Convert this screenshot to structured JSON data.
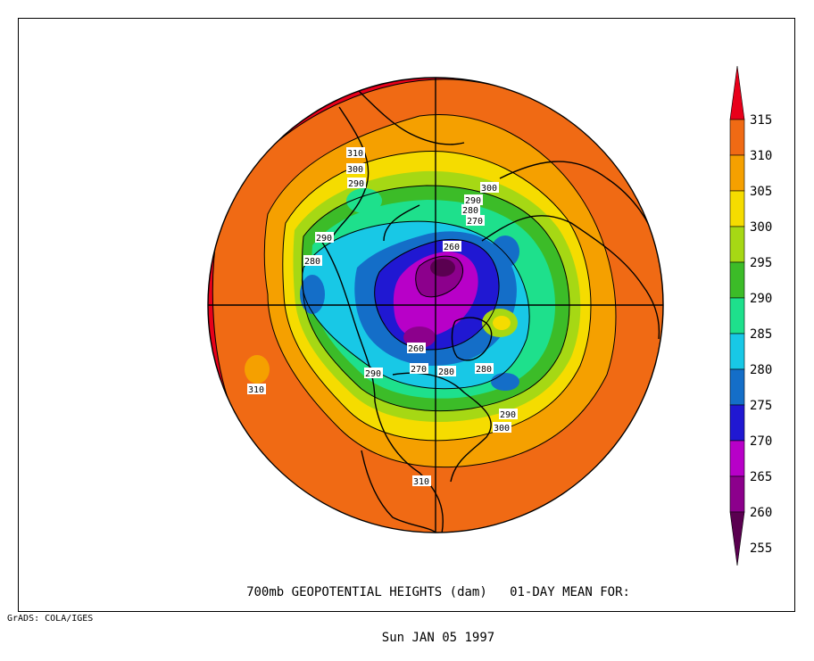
{
  "caption": {
    "line1": "700mb GEOPOTENTIAL HEIGHTS (dam)   01-DAY MEAN FOR:",
    "line2": "Sun JAN 05 1997"
  },
  "credit": "GrADS: COLA/IGES",
  "colorbar": {
    "levels": [
      "315",
      "310",
      "305",
      "300",
      "295",
      "290",
      "285",
      "280",
      "275",
      "270",
      "265",
      "260",
      "255"
    ],
    "colors": [
      "#e8001a",
      "#f06a14",
      "#f5a000",
      "#f5dc00",
      "#a6d814",
      "#3cbc28",
      "#1ee08c",
      "#18c8e6",
      "#146ec8",
      "#2018d2",
      "#b800c8",
      "#8c008c",
      "#5a0050"
    ]
  },
  "contour_labels": [
    {
      "text": "310"
    },
    {
      "text": "300"
    },
    {
      "text": "290"
    },
    {
      "text": "300"
    },
    {
      "text": "290"
    },
    {
      "text": "280"
    },
    {
      "text": "270"
    },
    {
      "text": "260"
    },
    {
      "text": "290"
    },
    {
      "text": "280"
    },
    {
      "text": "260"
    },
    {
      "text": "270"
    },
    {
      "text": "280"
    },
    {
      "text": "280"
    },
    {
      "text": "290"
    },
    {
      "text": "290"
    },
    {
      "text": "300"
    },
    {
      "text": "310"
    },
    {
      "text": "310"
    }
  ]
}
